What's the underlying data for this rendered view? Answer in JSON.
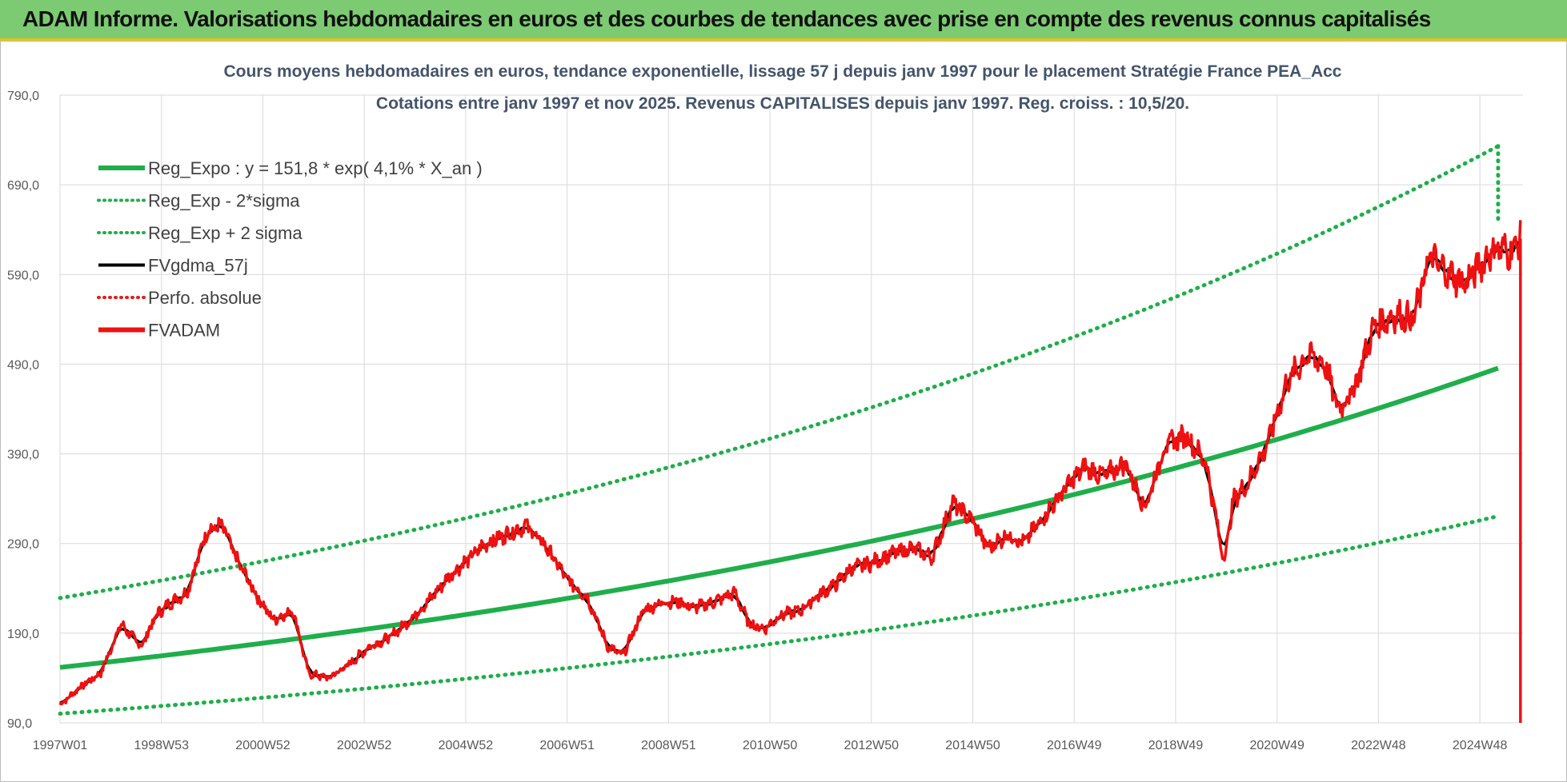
{
  "header": {
    "title": "ADAM Informe. Valorisations hebdomadaires en euros et des courbes de tendances avec prise en compte des revenus connus capitalisés"
  },
  "colors": {
    "header_bg": "#7ccb72",
    "header_border": "#e8c21c",
    "reg_green": "#1fae4b",
    "fvadam_red": "#ee1111",
    "fvgdma_black": "#000000",
    "perfo_red": "#dd2222"
  },
  "chart_data": {
    "type": "line",
    "title": "Cours moyens hebdomadaires en euros, tendance exponentielle, lissage 57 j depuis janv 1997 pour le placement Stratégie France PEA_Acc",
    "subtitle": "Cotations entre janv 1997 et nov 2025. Revenus CAPITALISES depuis janv 1997. Reg. croiss. : 10,5/20.",
    "xlabel": "",
    "ylabel": "",
    "ylim": [
      90,
      790
    ],
    "yticks": [
      "790,0",
      "690,0",
      "590,0",
      "490,0",
      "390,0",
      "290,0",
      "190,0",
      "90,0"
    ],
    "ytick_values": [
      790,
      690,
      590,
      490,
      390,
      290,
      190,
      90
    ],
    "xlim": [
      1997.0,
      2025.85
    ],
    "xticks": [
      "1997W01",
      "1998W53",
      "2000W52",
      "2002W52",
      "2004W52",
      "2006W51",
      "2008W51",
      "2010W50",
      "2012W50",
      "2014W50",
      "2016W49",
      "2018W49",
      "2020W49",
      "2022W48",
      "2024W48"
    ],
    "xtick_values": [
      1997.0,
      1999.0,
      2001.0,
      2003.0,
      2005.0,
      2007.0,
      2009.0,
      2011.0,
      2013.0,
      2015.0,
      2017.0,
      2019.0,
      2021.0,
      2023.0,
      2025.0
    ],
    "grid": true,
    "legend_position": "top-left",
    "regression": {
      "a": 151.8,
      "rate": 0.041,
      "sigma_band_low": 0.66,
      "sigma_band_high": 1.51
    },
    "series": [
      {
        "name": "Reg_Expo : y = 151,8 * exp( 4,1% *  X_an )",
        "style": "solid-thick",
        "color": "#1fae4b"
      },
      {
        "name": "Reg_Exp - 2*sigma",
        "style": "dotted",
        "color": "#1fae4b"
      },
      {
        "name": "Reg_Exp + 2 sigma",
        "style": "dotted",
        "color": "#1fae4b"
      },
      {
        "name": "FVgdma_57j",
        "style": "solid",
        "color": "#000000"
      },
      {
        "name": "Perfo. absolue",
        "style": "dotted",
        "color": "#dd2222"
      },
      {
        "name": "FVADAM",
        "style": "solid-thick",
        "color": "#ee1111"
      }
    ],
    "fvadam_points": {
      "x": [
        1997.0,
        1997.4,
        1997.8,
        1998.2,
        1998.6,
        1998.9,
        1999.2,
        1999.5,
        1999.9,
        2000.2,
        2000.5,
        2000.9,
        2001.2,
        2001.6,
        2001.9,
        2002.3,
        2002.7,
        2003.1,
        2003.5,
        2003.9,
        2004.3,
        2004.7,
        2005.0,
        2005.4,
        2005.8,
        2006.2,
        2006.6,
        2007.0,
        2007.4,
        2007.8,
        2008.1,
        2008.5,
        2008.9,
        2009.2,
        2009.5,
        2009.9,
        2010.3,
        2010.6,
        2010.9,
        2011.2,
        2011.6,
        2011.9,
        2012.3,
        2012.6,
        2013.0,
        2013.4,
        2013.8,
        2014.2,
        2014.6,
        2015.0,
        2015.3,
        2015.7,
        2016.0,
        2016.4,
        2016.8,
        2017.2,
        2017.6,
        2018.0,
        2018.4,
        2018.8,
        2019.2,
        2019.6,
        2019.95,
        2020.15,
        2020.4,
        2020.8,
        2021.2,
        2021.6,
        2021.95,
        2022.2,
        2022.5,
        2022.9,
        2023.3,
        2023.7,
        2024.0,
        2024.4,
        2024.7,
        2025.0,
        2025.3,
        2025.6,
        2025.8
      ],
      "y": [
        110,
        130,
        145,
        200,
        175,
        210,
        225,
        235,
        305,
        310,
        270,
        230,
        205,
        215,
        145,
        140,
        155,
        175,
        185,
        205,
        228,
        255,
        270,
        290,
        300,
        310,
        285,
        250,
        230,
        175,
        165,
        215,
        225,
        225,
        218,
        225,
        235,
        200,
        195,
        210,
        215,
        230,
        245,
        262,
        268,
        278,
        285,
        275,
        335,
        315,
        285,
        300,
        290,
        320,
        350,
        375,
        365,
        380,
        330,
        400,
        410,
        380,
        270,
        340,
        355,
        400,
        470,
        500,
        490,
        440,
        460,
        530,
        545,
        540,
        610,
        590,
        580,
        600,
        620,
        615,
        630
      ]
    }
  }
}
